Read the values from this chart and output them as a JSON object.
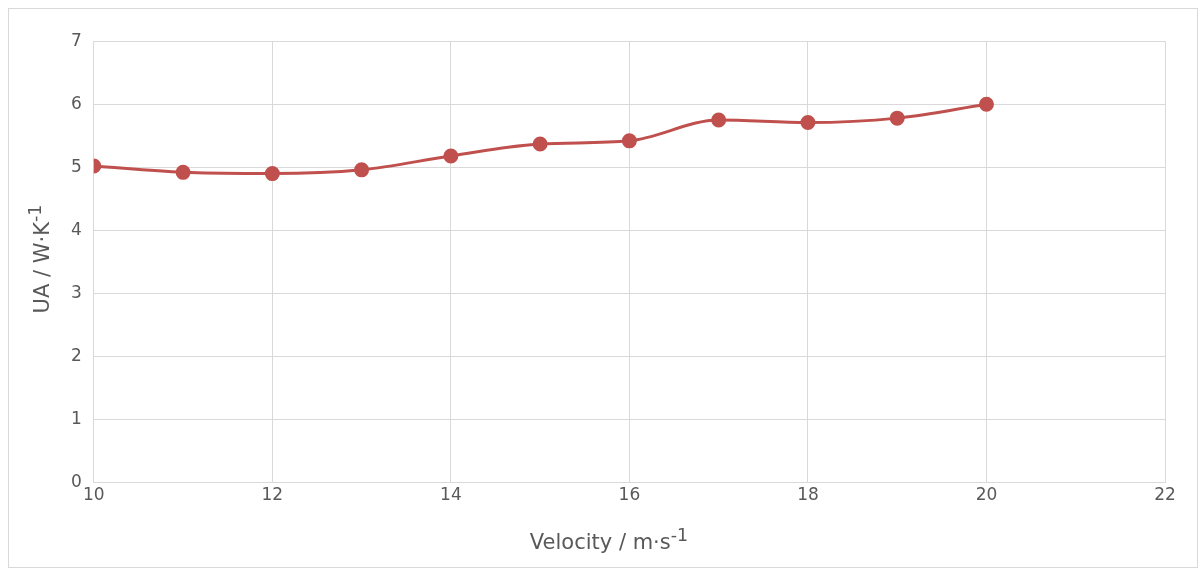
{
  "chart_data": {
    "type": "line",
    "xlabel": "Velocity / m·s$^{-1}$",
    "ylabel": "UA  / W·K$^{-1}$",
    "x": [
      10,
      11,
      12,
      13,
      14,
      15,
      16,
      17,
      18,
      19,
      20
    ],
    "series": [
      {
        "color": "#c0504d",
        "values": [
          5.02,
          4.92,
          4.9,
          4.96,
          5.18,
          5.37,
          5.42,
          5.75,
          5.71,
          5.78,
          6.0
        ]
      }
    ],
    "xlim": [
      10,
      22
    ],
    "xticks": [
      10,
      12,
      14,
      16,
      18,
      20,
      22
    ],
    "ylim": [
      0,
      7
    ],
    "yticks": [
      0,
      1,
      2,
      3,
      4,
      5,
      6,
      7
    ],
    "grid": true,
    "legend": false,
    "marker": "circle",
    "line_style": "solid"
  }
}
